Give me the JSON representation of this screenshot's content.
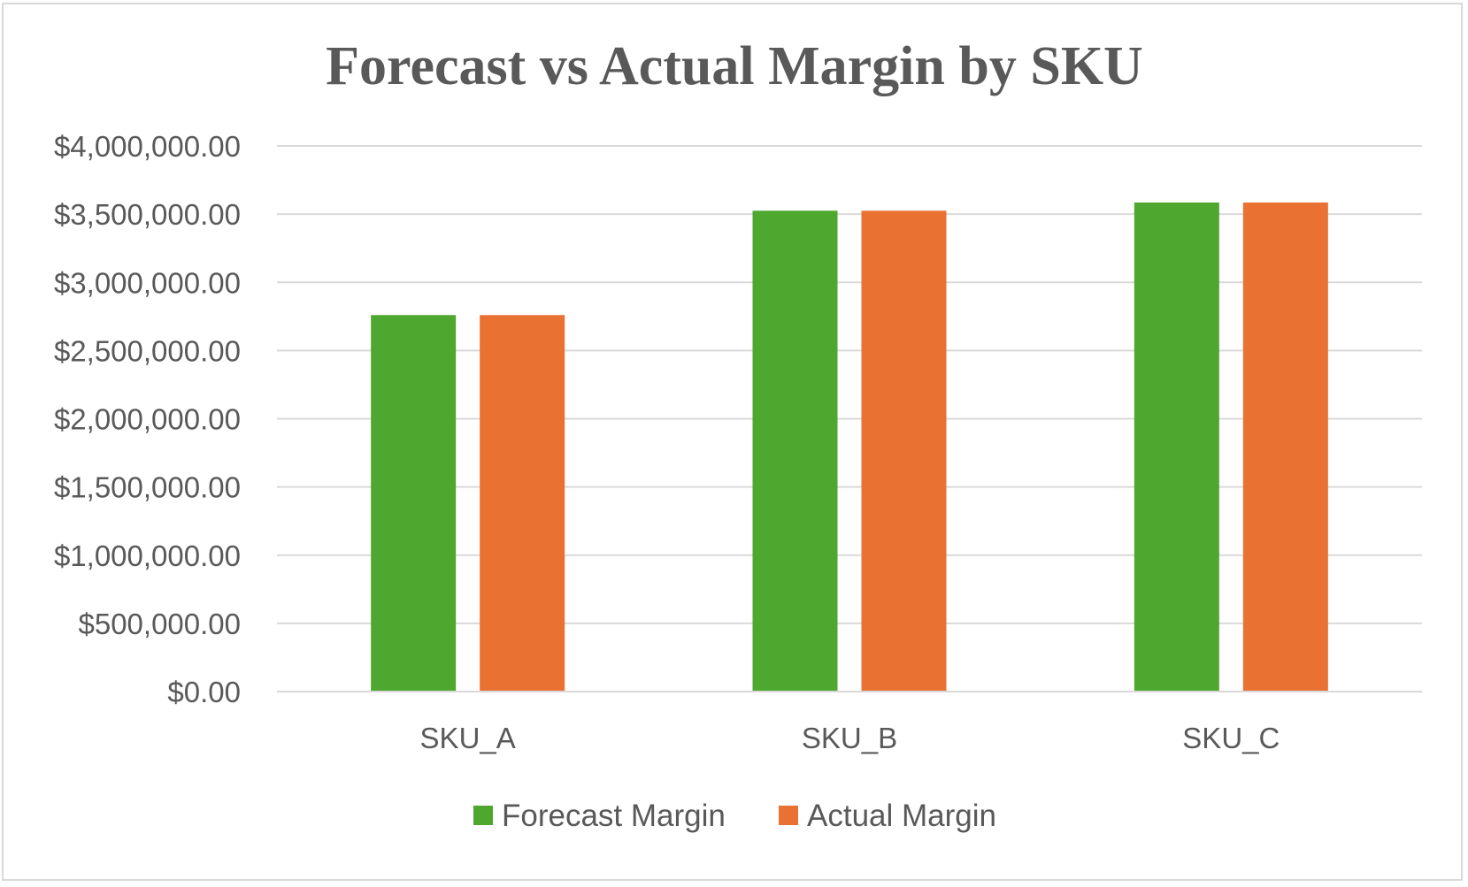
{
  "chart_data": {
    "type": "bar",
    "title": "Forecast vs Actual Margin by SKU",
    "xlabel": "",
    "ylabel": "",
    "categories": [
      "SKU_A",
      "SKU_B",
      "SKU_C"
    ],
    "series": [
      {
        "name": "Forecast Margin",
        "color": "#4ea72e",
        "values": [
          2760000,
          3525000,
          3585000
        ]
      },
      {
        "name": "Actual Margin",
        "color": "#e97132",
        "values": [
          2760000,
          3525000,
          3585000
        ]
      }
    ],
    "ylim": [
      0,
      4000000
    ],
    "yticks": [
      0,
      500000,
      1000000,
      1500000,
      2000000,
      2500000,
      3000000,
      3500000,
      4000000
    ],
    "ytick_labels": [
      "$0.00",
      "$500,000.00",
      "$1,000,000.00",
      "$1,500,000.00",
      "$2,000,000.00",
      "$2,500,000.00",
      "$3,000,000.00",
      "$3,500,000.00",
      "$4,000,000.00"
    ],
    "grid": true,
    "gridline_color": "#d9d9d9",
    "legend_position": "bottom"
  }
}
